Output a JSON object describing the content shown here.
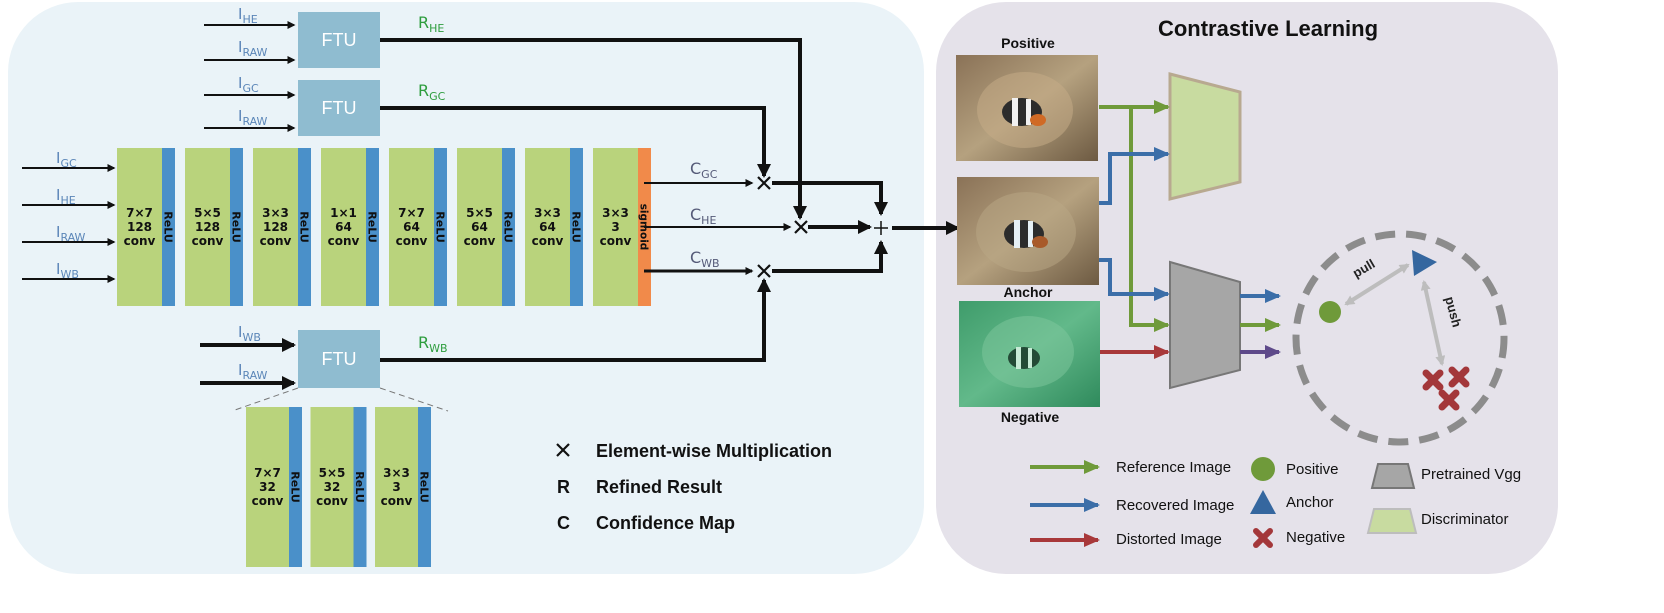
{
  "inputs": {
    "main": [
      {
        "base": "I",
        "sub": "GC"
      },
      {
        "base": "I",
        "sub": "HE"
      },
      {
        "base": "I",
        "sub": "RAW"
      },
      {
        "base": "I",
        "sub": "WB"
      }
    ],
    "ftu_he": [
      {
        "base": "I",
        "sub": "HE"
      },
      {
        "base": "I",
        "sub": "RAW"
      }
    ],
    "ftu_gc": [
      {
        "base": "I",
        "sub": "GC"
      },
      {
        "base": "I",
        "sub": "RAW"
      }
    ],
    "ftu_wb": [
      {
        "base": "I",
        "sub": "WB"
      },
      {
        "base": "I",
        "sub": "RAW"
      }
    ]
  },
  "ftu_label": "FTU",
  "refined": [
    {
      "base": "R",
      "sub": "HE"
    },
    {
      "base": "R",
      "sub": "GC"
    },
    {
      "base": "R",
      "sub": "WB"
    }
  ],
  "confidence": [
    {
      "base": "C",
      "sub": "GC"
    },
    {
      "base": "C",
      "sub": "HE"
    },
    {
      "base": "C",
      "sub": "WB"
    }
  ],
  "main_blocks": [
    {
      "kernel": "7×7",
      "channels": "128",
      "op": "conv",
      "act": "ReLU"
    },
    {
      "kernel": "5×5",
      "channels": "128",
      "op": "conv",
      "act": "ReLU"
    },
    {
      "kernel": "3×3",
      "channels": "128",
      "op": "conv",
      "act": "ReLU"
    },
    {
      "kernel": "1×1",
      "channels": "64",
      "op": "conv",
      "act": "ReLU"
    },
    {
      "kernel": "7×7",
      "channels": "64",
      "op": "conv",
      "act": "ReLU"
    },
    {
      "kernel": "5×5",
      "channels": "64",
      "op": "conv",
      "act": "ReLU"
    },
    {
      "kernel": "3×3",
      "channels": "64",
      "op": "conv",
      "act": "ReLU"
    },
    {
      "kernel": "3×3",
      "channels": "3",
      "op": "conv",
      "act": "sigmoid"
    }
  ],
  "ftu_blocks": [
    {
      "kernel": "7×7",
      "channels": "32",
      "op": "conv",
      "act": "ReLU"
    },
    {
      "kernel": "5×5",
      "channels": "32",
      "op": "conv",
      "act": "ReLU"
    },
    {
      "kernel": "3×3",
      "channels": "3",
      "op": "conv",
      "act": "ReLU"
    }
  ],
  "legend_left": [
    {
      "symbol": "×",
      "text": "Element-wise Multiplication"
    },
    {
      "symbol": "R",
      "text": "Refined Result"
    },
    {
      "symbol": "C",
      "text": "Confidence Map"
    }
  ],
  "contrastive": {
    "title": "Contrastive Learning",
    "positive_label": "Positive",
    "anchor_label": "Anchor",
    "negative_label": "Negative",
    "pull_label": "pull",
    "push_label": "push"
  },
  "legend_right": {
    "reference": "Reference Image",
    "recovered": "Recovered Image",
    "distorted": "Distorted Image",
    "positive": "Positive",
    "anchor": "Anchor",
    "negative": "Negative",
    "vgg": "Pretrained Vgg",
    "discriminator": "Discriminator"
  },
  "colors": {
    "panel_left": "#eaf3f8",
    "panel_right": "#e5e2ea",
    "conv_block": "#b9d37c",
    "relu_bar": "#4a90c9",
    "sigmoid_bar": "#f18a4a",
    "ftu_box": "#8fbcd0",
    "arrow_green": "#6f9a3a",
    "arrow_blue": "#3b6ea8",
    "arrow_red": "#a8383a",
    "arrow_purple": "#5e4a8a",
    "vgg": "#a6a6a6",
    "discriminator": "#c8dba0",
    "positive_dot": "#6f9a3a",
    "anchor_tri": "#35679f",
    "negative_x": "#a3373a"
  }
}
